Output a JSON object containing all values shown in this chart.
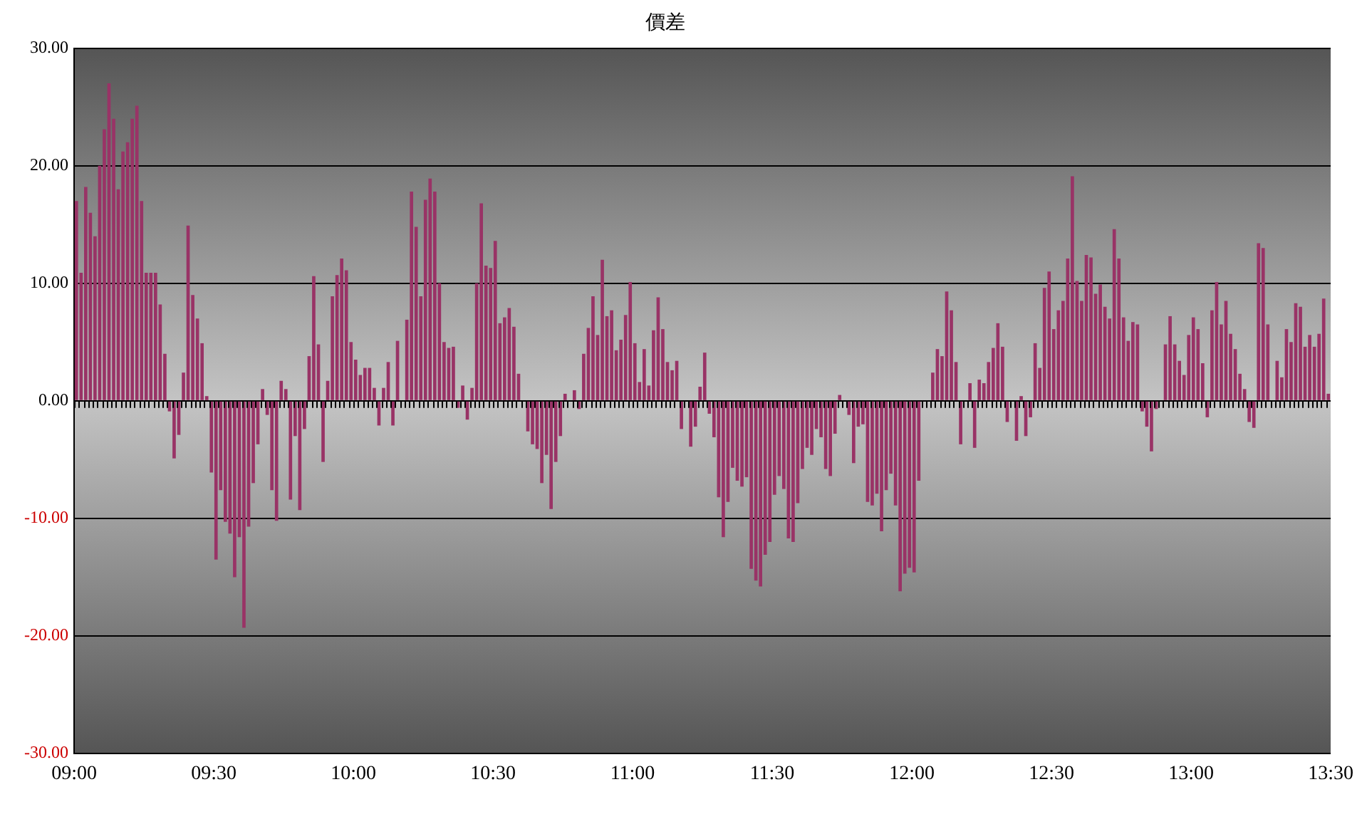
{
  "chart_data": {
    "type": "bar",
    "title": "價差",
    "color": "#993366",
    "grid": "y",
    "xlim": [
      9,
      13.5
    ],
    "xticks": [
      {
        "value": 9,
        "label": "09:00"
      },
      {
        "value": 9.5,
        "label": "09:30"
      },
      {
        "value": 10,
        "label": "10:00"
      },
      {
        "value": 10.5,
        "label": "10:30"
      },
      {
        "value": 11,
        "label": "11:00"
      },
      {
        "value": 11.5,
        "label": "11:30"
      },
      {
        "value": 12,
        "label": "12:00"
      },
      {
        "value": 12.5,
        "label": "12:30"
      },
      {
        "value": 13,
        "label": "13:00"
      },
      {
        "value": 13.5,
        "label": "13:30"
      }
    ],
    "ylim": [
      -30,
      30
    ],
    "yticks": [
      {
        "value": -30,
        "label": "-30.00"
      },
      {
        "value": -20,
        "label": "-20.00"
      },
      {
        "value": -10,
        "label": "-10.00"
      },
      {
        "value": 0,
        "label": "0.00"
      },
      {
        "value": 10,
        "label": "10.00"
      },
      {
        "value": 20,
        "label": "20.00"
      },
      {
        "value": 30,
        "label": "30.00"
      }
    ],
    "x": [
      9.0083,
      9.025,
      9.0417,
      9.0583,
      9.075,
      9.0917,
      9.1083,
      9.125,
      9.1417,
      9.1583,
      9.175,
      9.1917,
      9.2083,
      9.225,
      9.2417,
      9.2583,
      9.275,
      9.2917,
      9.3083,
      9.325,
      9.3417,
      9.3583,
      9.375,
      9.3917,
      9.4083,
      9.425,
      9.4417,
      9.4583,
      9.475,
      9.4917,
      9.5083,
      9.525,
      9.5417,
      9.5583,
      9.575,
      9.5917,
      9.6083,
      9.625,
      9.6417,
      9.6583,
      9.675,
      9.6917,
      9.7083,
      9.725,
      9.7417,
      9.7583,
      9.775,
      9.7917,
      9.8083,
      9.825,
      9.8417,
      9.8583,
      9.875,
      9.8917,
      9.9083,
      9.925,
      9.9417,
      9.9583,
      9.975,
      9.9917,
      10.0083,
      10.025,
      10.0417,
      10.0583,
      10.075,
      10.0917,
      10.1083,
      10.125,
      10.1417,
      10.1583,
      10.175,
      10.1917,
      10.2083,
      10.225,
      10.2417,
      10.2583,
      10.275,
      10.2917,
      10.3083,
      10.325,
      10.3417,
      10.3583,
      10.375,
      10.3917,
      10.4083,
      10.425,
      10.4417,
      10.4583,
      10.475,
      10.4917,
      10.5083,
      10.525,
      10.5417,
      10.5583,
      10.575,
      10.5917,
      10.6083,
      10.625,
      10.6417,
      10.6583,
      10.675,
      10.6917,
      10.7083,
      10.725,
      10.7417,
      10.7583,
      10.775,
      10.7917,
      10.8083,
      10.825,
      10.8417,
      10.8583,
      10.875,
      10.8917,
      10.9083,
      10.925,
      10.9417,
      10.9583,
      10.975,
      10.9917,
      11.0083,
      11.025,
      11.0417,
      11.0583,
      11.075,
      11.0917,
      11.1083,
      11.125,
      11.1417,
      11.1583,
      11.175,
      11.1917,
      11.2083,
      11.225,
      11.2417,
      11.2583,
      11.275,
      11.2917,
      11.3083,
      11.325,
      11.3417,
      11.3583,
      11.375,
      11.3917,
      11.4083,
      11.425,
      11.4417,
      11.4583,
      11.475,
      11.4917,
      11.5083,
      11.525,
      11.5417,
      11.5583,
      11.575,
      11.5917,
      11.6083,
      11.625,
      11.6417,
      11.6583,
      11.675,
      11.6917,
      11.7083,
      11.725,
      11.7417,
      11.7583,
      11.775,
      11.7917,
      11.8083,
      11.825,
      11.8417,
      11.8583,
      11.875,
      11.8917,
      11.9083,
      11.925,
      11.9417,
      11.9583,
      11.975,
      11.9917,
      12.0083,
      12.025,
      12.0417,
      12.0583,
      12.075,
      12.0917,
      12.1083,
      12.125,
      12.1417,
      12.1583,
      12.175,
      12.1917,
      12.2083,
      12.225,
      12.2417,
      12.2583,
      12.275,
      12.2917,
      12.3083,
      12.325,
      12.3417,
      12.3583,
      12.375,
      12.3917,
      12.4083,
      12.425,
      12.4417,
      12.4583,
      12.475,
      12.4917,
      12.5083,
      12.525,
      12.5417,
      12.5583,
      12.575,
      12.5917,
      12.6083,
      12.625,
      12.6417,
      12.6583,
      12.675,
      12.6917,
      12.7083,
      12.725,
      12.7417,
      12.7583,
      12.775,
      12.7917,
      12.8083,
      12.825,
      12.8417,
      12.8583,
      12.875,
      12.8917,
      12.9083,
      12.925,
      12.9417,
      12.9583,
      12.975,
      12.9917,
      13.0083,
      13.025,
      13.0417,
      13.0583,
      13.075,
      13.0917,
      13.1083,
      13.125,
      13.1417,
      13.1583,
      13.175,
      13.1917,
      13.2083,
      13.225,
      13.2417,
      13.2583,
      13.275,
      13.2917,
      13.3083,
      13.325,
      13.3417,
      13.3583,
      13.375,
      13.3917,
      13.4083,
      13.425,
      13.4417,
      13.4583,
      13.475,
      13.4917
    ],
    "values": [
      17.0,
      10.9,
      18.2,
      16.0,
      14.0,
      20.0,
      23.1,
      27.0,
      24.0,
      18.0,
      21.2,
      22.0,
      24.0,
      25.1,
      17.0,
      10.9,
      10.9,
      10.9,
      8.2,
      4.0,
      -0.9,
      -4.9,
      -2.9,
      2.4,
      14.9,
      9.0,
      7.0,
      4.9,
      0.4,
      -6.1,
      -13.5,
      -7.6,
      -10.3,
      -11.3,
      -15.0,
      -11.6,
      -19.3,
      -10.7,
      -7.0,
      -3.7,
      1.0,
      -1.2,
      -7.6,
      -10.2,
      1.7,
      1.0,
      -8.4,
      -3.0,
      -9.3,
      -2.4,
      3.8,
      10.6,
      4.8,
      -5.2,
      1.7,
      8.9,
      10.7,
      12.1,
      11.1,
      5.0,
      3.5,
      2.2,
      2.8,
      2.8,
      1.1,
      -2.1,
      1.1,
      3.3,
      -2.1,
      5.1,
      0,
      6.9,
      17.8,
      14.8,
      8.9,
      17.1,
      18.9,
      17.8,
      10.0,
      5.0,
      4.5,
      4.6,
      -0.6,
      1.3,
      -1.6,
      1.1,
      10.0,
      16.8,
      11.5,
      11.3,
      13.6,
      6.6,
      7.1,
      7.9,
      6.3,
      2.3,
      0,
      -2.6,
      -3.7,
      -4.1,
      -7.0,
      -4.6,
      -9.2,
      -5.2,
      -3.0,
      0.6,
      0,
      0.9,
      -0.7,
      4.0,
      6.2,
      8.9,
      5.6,
      12.0,
      7.2,
      7.7,
      4.3,
      5.2,
      7.3,
      10.1,
      4.9,
      1.6,
      4.4,
      1.3,
      6.0,
      8.8,
      6.1,
      3.3,
      2.6,
      3.4,
      -2.4,
      0,
      -3.9,
      -2.2,
      1.2,
      4.1,
      -1.1,
      -3.1,
      -8.2,
      -11.6,
      -8.6,
      -5.7,
      -6.8,
      -7.3,
      -6.5,
      -14.3,
      -15.3,
      -15.8,
      -13.1,
      -12.0,
      -8.0,
      -6.4,
      -7.5,
      -11.7,
      -12.0,
      -8.7,
      -5.8,
      -4.0,
      -4.6,
      -2.4,
      -3.1,
      -5.8,
      -6.4,
      -2.8,
      0.5,
      0,
      -1.2,
      -5.3,
      -2.2,
      -2.0,
      -8.6,
      -8.9,
      -7.9,
      -11.1,
      -7.6,
      -6.2,
      -8.9,
      -16.2,
      -14.7,
      -14.2,
      -14.6,
      -6.8,
      0,
      0,
      2.4,
      4.4,
      3.8,
      9.3,
      7.7,
      3.3,
      -3.7,
      0,
      1.5,
      -4.0,
      1.8,
      1.5,
      3.3,
      4.5,
      6.6,
      4.6,
      -1.8,
      0,
      -3.4,
      0.4,
      -3.0,
      -1.4,
      4.9,
      2.8,
      9.6,
      11.0,
      6.1,
      7.7,
      8.5,
      12.1,
      19.1,
      10.2,
      8.5,
      12.4,
      12.2,
      9.1,
      9.9,
      8.0,
      7.0,
      14.6,
      12.1,
      7.1,
      5.1,
      6.7,
      6.5,
      -0.9,
      -2.2,
      -4.3,
      -0.7,
      0,
      4.8,
      7.2,
      4.8,
      3.4,
      2.2,
      5.6,
      7.1,
      6.1,
      3.2,
      -1.4,
      7.7,
      10.1,
      6.5,
      8.5,
      5.7,
      4.4,
      2.3,
      1.0,
      -1.8,
      -2.3,
      13.4,
      13.0,
      6.5,
      0,
      3.4,
      2.0,
      6.1,
      5.0,
      8.3,
      8.0,
      4.6,
      5.6,
      4.6,
      5.7,
      8.7,
      0.6
    ]
  }
}
